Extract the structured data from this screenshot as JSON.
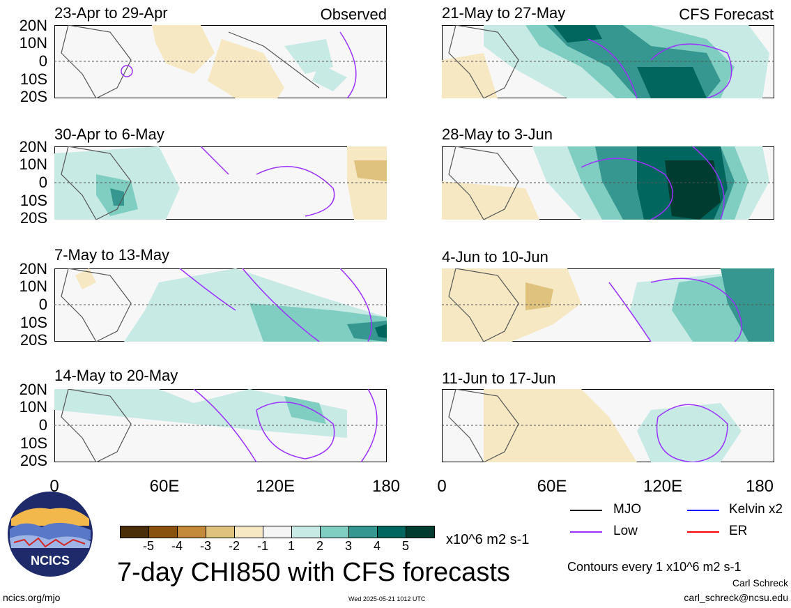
{
  "panels": [
    {
      "title": "23-Apr to 29-Apr",
      "tag": "Observed"
    },
    {
      "title": "30-Apr to 6-May",
      "tag": ""
    },
    {
      "title": "7-May to 13-May",
      "tag": ""
    },
    {
      "title": "14-May to 20-May",
      "tag": ""
    },
    {
      "title": "21-May to 27-May",
      "tag": "CFS Forecast"
    },
    {
      "title": "28-May to 3-Jun",
      "tag": ""
    },
    {
      "title": "4-Jun to 10-Jun",
      "tag": ""
    },
    {
      "title": "11-Jun to 17-Jun",
      "tag": ""
    }
  ],
  "lat_labels": [
    "20N",
    "10N",
    "0",
    "10S",
    "20S"
  ],
  "lon_labels": [
    "0",
    "60E",
    "120E",
    "180"
  ],
  "legend": {
    "values": [
      "-5",
      "-4",
      "-3",
      "-2",
      "-1",
      "1",
      "2",
      "3",
      "4",
      "5"
    ],
    "colors": [
      "#4a2e0a",
      "#8a520f",
      "#c28a3a",
      "#dfc27d",
      "#f6e8c3",
      "#f5f5f5",
      "#c7eae5",
      "#80cdc1",
      "#35978f",
      "#01665e",
      "#003c30"
    ],
    "units": "x10^6 m2 s-1"
  },
  "title": "7-day CHI850 with CFS forecasts",
  "contour_key": [
    {
      "label": "MJO",
      "color": "#000000"
    },
    {
      "label": "Kelvin x2",
      "color": "#0000ff"
    },
    {
      "label": "Low",
      "color": "#9b30ff"
    },
    {
      "label": "ER",
      "color": "#ff0000"
    }
  ],
  "contour_note": "Contours every 1 x10^6 m2 s-1",
  "author": "Carl Schreck",
  "email": "carl_schreck@ncsu.edu",
  "site": "ncics.org/mjo",
  "timestamp": "Wed 2025-05-21 1012 UTC",
  "logo_text": "NCICS"
}
